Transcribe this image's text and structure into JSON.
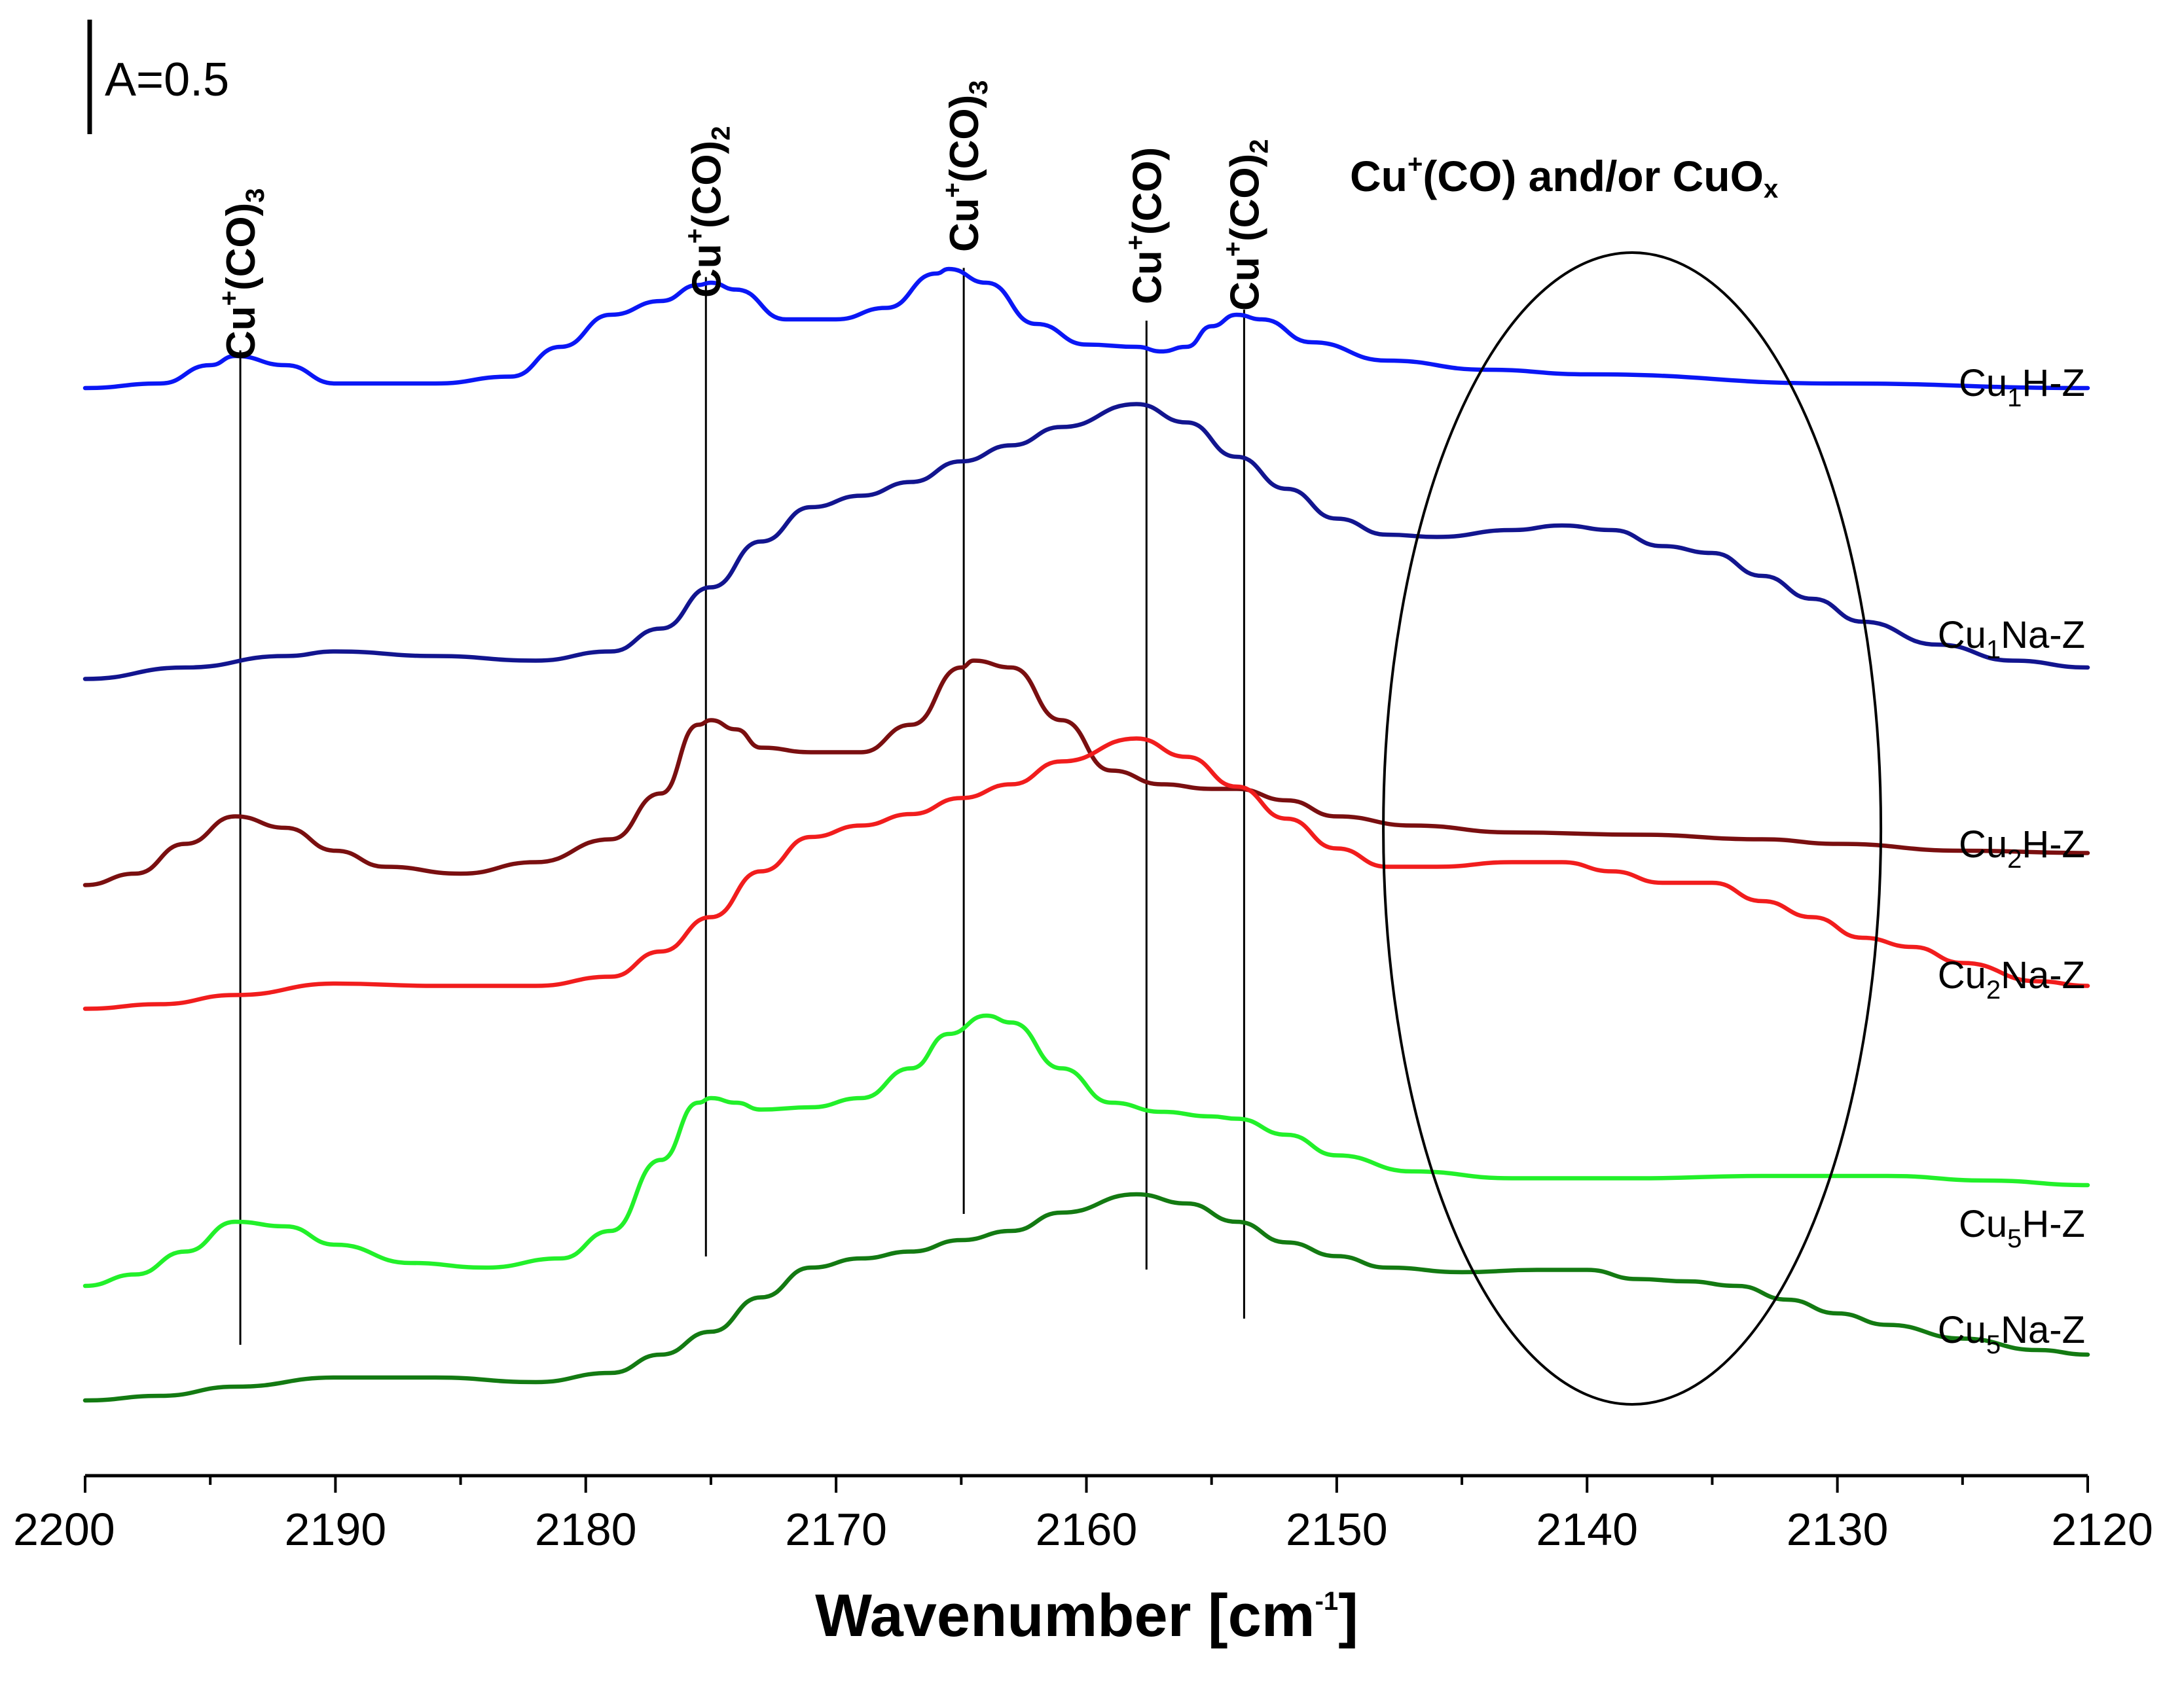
{
  "chart_data": {
    "type": "line",
    "title": "",
    "xlabel": "Wavenumber [cm",
    "xlabel_sup": "-1",
    "xlabel_end": "]",
    "ylabel": "",
    "xlim": [
      2200,
      2120
    ],
    "x_ticks": [
      2200,
      2190,
      2180,
      2170,
      2160,
      2150,
      2140,
      2130,
      2120
    ],
    "scale_bar": {
      "label": "A=0.5",
      "absorbance": 0.5
    },
    "series": [
      {
        "name": "Cu1H-Z",
        "label_main": "Cu",
        "label_sub": "1",
        "label_rest": "H-Z",
        "color": "#0a17f5",
        "offset": 4.62,
        "points": [
          [
            2200,
            0.0
          ],
          [
            2197,
            0.02
          ],
          [
            2195,
            0.1
          ],
          [
            2194,
            0.14
          ],
          [
            2192,
            0.1
          ],
          [
            2190,
            0.02
          ],
          [
            2186,
            0.02
          ],
          [
            2183,
            0.05
          ],
          [
            2181,
            0.18
          ],
          [
            2179,
            0.32
          ],
          [
            2177,
            0.38
          ],
          [
            2175.5,
            0.45
          ],
          [
            2175,
            0.46
          ],
          [
            2174,
            0.43
          ],
          [
            2172,
            0.3
          ],
          [
            2170,
            0.3
          ],
          [
            2168,
            0.35
          ],
          [
            2166,
            0.5
          ],
          [
            2165.5,
            0.52
          ],
          [
            2164,
            0.46
          ],
          [
            2162,
            0.28
          ],
          [
            2160,
            0.19
          ],
          [
            2158,
            0.18
          ],
          [
            2157,
            0.16
          ],
          [
            2156,
            0.18
          ],
          [
            2155,
            0.27
          ],
          [
            2154,
            0.32
          ],
          [
            2153,
            0.3
          ],
          [
            2151,
            0.2
          ],
          [
            2148,
            0.12
          ],
          [
            2144,
            0.08
          ],
          [
            2140,
            0.06
          ],
          [
            2130,
            0.02
          ],
          [
            2120,
            0.0
          ]
        ]
      },
      {
        "name": "Cu1Na-Z",
        "label_main": "Cu",
        "label_sub": "1",
        "label_rest": "Na-Z",
        "color": "#12158f",
        "offset": 3.35,
        "points": [
          [
            2200,
            0.0
          ],
          [
            2196,
            0.05
          ],
          [
            2192,
            0.1
          ],
          [
            2190,
            0.12
          ],
          [
            2186,
            0.1
          ],
          [
            2182,
            0.08
          ],
          [
            2179,
            0.12
          ],
          [
            2177,
            0.22
          ],
          [
            2175,
            0.4
          ],
          [
            2173,
            0.6
          ],
          [
            2171,
            0.75
          ],
          [
            2169,
            0.8
          ],
          [
            2167,
            0.86
          ],
          [
            2165,
            0.95
          ],
          [
            2163,
            1.02
          ],
          [
            2161,
            1.1
          ],
          [
            2158,
            1.2
          ],
          [
            2156,
            1.12
          ],
          [
            2154,
            0.97
          ],
          [
            2152,
            0.83
          ],
          [
            2150,
            0.7
          ],
          [
            2148,
            0.63
          ],
          [
            2146,
            0.62
          ],
          [
            2143,
            0.65
          ],
          [
            2141,
            0.67
          ],
          [
            2139,
            0.65
          ],
          [
            2137,
            0.58
          ],
          [
            2135,
            0.55
          ],
          [
            2133,
            0.45
          ],
          [
            2131,
            0.35
          ],
          [
            2129,
            0.25
          ],
          [
            2126,
            0.15
          ],
          [
            2123,
            0.08
          ],
          [
            2120,
            0.05
          ]
        ]
      },
      {
        "name": "Cu2H-Z",
        "label_main": "Cu",
        "label_sub": "2",
        "label_rest": "H-Z",
        "color": "#7a0f10",
        "offset": 2.45,
        "points": [
          [
            2200,
            0.0
          ],
          [
            2198,
            0.05
          ],
          [
            2196,
            0.18
          ],
          [
            2194,
            0.3
          ],
          [
            2192,
            0.25
          ],
          [
            2190,
            0.15
          ],
          [
            2188,
            0.08
          ],
          [
            2185,
            0.05
          ],
          [
            2182,
            0.1
          ],
          [
            2179,
            0.2
          ],
          [
            2177,
            0.4
          ],
          [
            2175.5,
            0.7
          ],
          [
            2175,
            0.72
          ],
          [
            2174,
            0.68
          ],
          [
            2173,
            0.6
          ],
          [
            2171,
            0.58
          ],
          [
            2169,
            0.58
          ],
          [
            2167,
            0.7
          ],
          [
            2165,
            0.95
          ],
          [
            2164.5,
            0.98
          ],
          [
            2163,
            0.95
          ],
          [
            2161,
            0.72
          ],
          [
            2159,
            0.5
          ],
          [
            2157,
            0.44
          ],
          [
            2155,
            0.42
          ],
          [
            2154,
            0.42
          ],
          [
            2152,
            0.37
          ],
          [
            2150,
            0.3
          ],
          [
            2147,
            0.26
          ],
          [
            2143,
            0.23
          ],
          [
            2138,
            0.22
          ],
          [
            2133,
            0.2
          ],
          [
            2130,
            0.18
          ],
          [
            2125,
            0.15
          ],
          [
            2120,
            0.14
          ]
        ]
      },
      {
        "name": "Cu2Na-Z",
        "label_main": "Cu",
        "label_sub": "2",
        "label_rest": "Na-Z",
        "color": "#f11d1d",
        "offset": 1.91,
        "points": [
          [
            2200,
            0.0
          ],
          [
            2197,
            0.02
          ],
          [
            2194,
            0.06
          ],
          [
            2190,
            0.11
          ],
          [
            2186,
            0.1
          ],
          [
            2182,
            0.1
          ],
          [
            2179,
            0.14
          ],
          [
            2177,
            0.25
          ],
          [
            2175,
            0.4
          ],
          [
            2173,
            0.6
          ],
          [
            2171,
            0.75
          ],
          [
            2169,
            0.8
          ],
          [
            2167,
            0.85
          ],
          [
            2165,
            0.92
          ],
          [
            2163,
            0.98
          ],
          [
            2161,
            1.08
          ],
          [
            2158,
            1.18
          ],
          [
            2156,
            1.1
          ],
          [
            2154,
            0.97
          ],
          [
            2152,
            0.83
          ],
          [
            2150,
            0.7
          ],
          [
            2148,
            0.62
          ],
          [
            2146,
            0.62
          ],
          [
            2143,
            0.64
          ],
          [
            2141,
            0.64
          ],
          [
            2139,
            0.6
          ],
          [
            2137,
            0.55
          ],
          [
            2135,
            0.55
          ],
          [
            2133,
            0.47
          ],
          [
            2131,
            0.4
          ],
          [
            2129,
            0.31
          ],
          [
            2127,
            0.27
          ],
          [
            2125,
            0.2
          ],
          [
            2122,
            0.12
          ],
          [
            2120,
            0.1
          ]
        ]
      },
      {
        "name": "Cu5H-Z",
        "label_main": "Cu",
        "label_sub": "5",
        "label_rest": "H-Z",
        "color": "#22f02a",
        "offset": 0.7,
        "points": [
          [
            2200,
            0.0
          ],
          [
            2198,
            0.05
          ],
          [
            2196,
            0.15
          ],
          [
            2194,
            0.28
          ],
          [
            2192,
            0.26
          ],
          [
            2190,
            0.18
          ],
          [
            2187,
            0.1
          ],
          [
            2184,
            0.08
          ],
          [
            2181,
            0.12
          ],
          [
            2179,
            0.24
          ],
          [
            2177,
            0.55
          ],
          [
            2175.5,
            0.8
          ],
          [
            2175,
            0.82
          ],
          [
            2174,
            0.8
          ],
          [
            2173,
            0.77
          ],
          [
            2171,
            0.78
          ],
          [
            2169,
            0.82
          ],
          [
            2167,
            0.95
          ],
          [
            2165.5,
            1.1
          ],
          [
            2164,
            1.18
          ],
          [
            2163,
            1.15
          ],
          [
            2161,
            0.95
          ],
          [
            2159,
            0.8
          ],
          [
            2157,
            0.76
          ],
          [
            2155,
            0.74
          ],
          [
            2154,
            0.73
          ],
          [
            2152,
            0.66
          ],
          [
            2150,
            0.57
          ],
          [
            2147,
            0.5
          ],
          [
            2143,
            0.47
          ],
          [
            2138,
            0.47
          ],
          [
            2133,
            0.48
          ],
          [
            2128,
            0.48
          ],
          [
            2124,
            0.46
          ],
          [
            2120,
            0.44
          ]
        ]
      },
      {
        "name": "Cu5Na-Z",
        "label_main": "Cu",
        "label_sub": "5",
        "label_rest": "Na-Z",
        "color": "#137a12",
        "offset": 0.2,
        "points": [
          [
            2200,
            0.0
          ],
          [
            2197,
            0.02
          ],
          [
            2194,
            0.06
          ],
          [
            2190,
            0.1
          ],
          [
            2186,
            0.1
          ],
          [
            2182,
            0.08
          ],
          [
            2179,
            0.12
          ],
          [
            2177,
            0.2
          ],
          [
            2175,
            0.3
          ],
          [
            2173,
            0.45
          ],
          [
            2171,
            0.58
          ],
          [
            2169,
            0.62
          ],
          [
            2167,
            0.65
          ],
          [
            2165,
            0.7
          ],
          [
            2163,
            0.74
          ],
          [
            2161,
            0.82
          ],
          [
            2158,
            0.9
          ],
          [
            2156,
            0.86
          ],
          [
            2154,
            0.78
          ],
          [
            2152,
            0.69
          ],
          [
            2150,
            0.63
          ],
          [
            2148,
            0.58
          ],
          [
            2145,
            0.56
          ],
          [
            2142,
            0.57
          ],
          [
            2140,
            0.57
          ],
          [
            2138,
            0.53
          ],
          [
            2136,
            0.52
          ],
          [
            2134,
            0.5
          ],
          [
            2132,
            0.44
          ],
          [
            2130,
            0.38
          ],
          [
            2128,
            0.33
          ],
          [
            2125,
            0.27
          ],
          [
            2122,
            0.22
          ],
          [
            2120,
            0.2
          ]
        ]
      }
    ],
    "peak_markers": [
      {
        "wavenumber": 2193.8,
        "label": "Cu",
        "sup": "+",
        "rest": "(CO)",
        "sub": "3"
      },
      {
        "wavenumber": 2175.2,
        "label": "Cu",
        "sup": "+",
        "rest": "(CO)",
        "sub": "2"
      },
      {
        "wavenumber": 2164.9,
        "label": "Cu",
        "sup": "+",
        "rest": "(CO)",
        "sub": "3"
      },
      {
        "wavenumber": 2157.6,
        "label": "Cu",
        "sup": "+",
        "rest": "(CO)",
        "sub": ""
      },
      {
        "wavenumber": 2153.7,
        "label": "Cu",
        "sup": "+",
        "rest": "(CO)",
        "sub": "2"
      }
    ],
    "region_annotation": {
      "text_a": "Cu",
      "sup": "+",
      "text_b": "(CO)  and/or CuO",
      "sub": "x",
      "center_wavenumber": 2138.2
    }
  }
}
